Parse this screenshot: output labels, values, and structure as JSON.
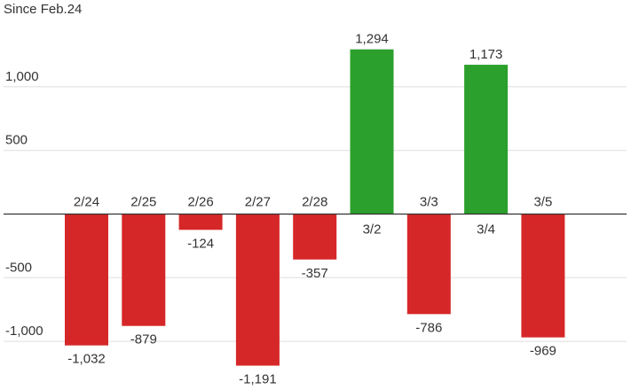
{
  "chart_data": {
    "type": "bar",
    "title": "",
    "subtitle": "Since Feb.24",
    "xlabel": "",
    "ylabel": "",
    "categories": [
      "2/24",
      "2/25",
      "2/26",
      "2/27",
      "2/28",
      "3/2",
      "3/3",
      "3/4",
      "3/5"
    ],
    "values": [
      -1032,
      -879,
      -124,
      -1191,
      -357,
      1294,
      -786,
      1173,
      -969
    ],
    "value_labels": [
      "-1,032",
      "-879",
      "-124",
      "-1,191",
      "-357",
      "1,294",
      "-786",
      "1,173",
      "-969"
    ],
    "yticks": [
      -1000,
      -500,
      500,
      1000
    ],
    "ytick_labels": [
      "-1,000",
      "-500",
      "500",
      "1,000"
    ],
    "ylim": [
      -1300,
      1500
    ],
    "grid": true,
    "legend": "none",
    "colors": {
      "positive": "#2ca02c",
      "negative": "#d62728",
      "grid": "#dddddd",
      "zero_line": "#333333",
      "text": "#333333"
    }
  }
}
